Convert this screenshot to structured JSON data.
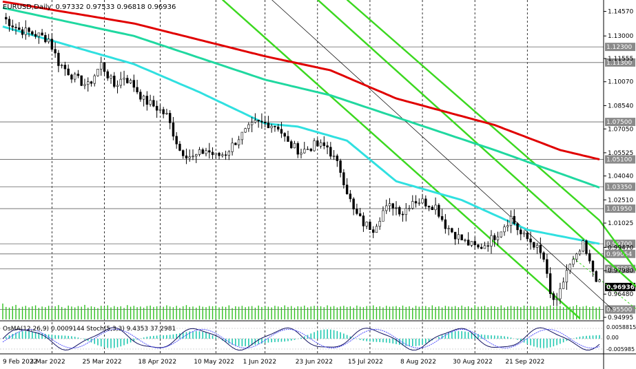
{
  "header": {
    "symbol": "EURUSD,Daily",
    "ohlc": "0.97332 0.97533 0.96818 0.96936"
  },
  "indicator_header": "OsMA(12,26,9) 0.0009144  Stoch(5,3,3) 9.4353 37.2981",
  "colors": {
    "background": "#ffffff",
    "candle": "#000000",
    "ema_red": "#e00000",
    "ema_teal": "#20d8a0",
    "ema_cyan": "#30e0e0",
    "channel": "#3cd820",
    "level_line": "#606060",
    "volume": "#30c020",
    "stoch_main": "#101060",
    "stoch_signal": "#5050ff"
  },
  "chart_data": {
    "type": "line",
    "price_axis": {
      "ticks": [
        "1.14570",
        "1.13000",
        "1.11555",
        "1.10070",
        "1.08540",
        "1.07050",
        "1.05525",
        "1.04040",
        "1.02510",
        "1.01025",
        "0.99470",
        "0.97980",
        "0.96480",
        "0.94995"
      ],
      "ylim": [
        0.9486,
        1.153
      ]
    },
    "levels": [
      "1.12300",
      "1.11300",
      "1.07500",
      "1.05100",
      "1.03350",
      "1.01950",
      "0.99700",
      "0.99054",
      "0.98093",
      "0.95500"
    ],
    "current_price": "0.96936",
    "dates": [
      "9 Feb 2022",
      "3 Mar 2022",
      "25 Mar 2022",
      "18 Apr 2022",
      "10 May 2022",
      "1 Jun 2022",
      "23 Jun 2022",
      "15 Jul 2022",
      "8 Aug 2022",
      "30 Aug 2022",
      "21 Sep 2022"
    ],
    "close_path": [
      [
        0,
        1.142
      ],
      [
        5,
        1.134
      ],
      [
        10,
        1.131
      ],
      [
        14,
        1.128
      ],
      [
        17,
        1.113
      ],
      [
        22,
        1.103
      ],
      [
        26,
        1.098
      ],
      [
        30,
        1.112
      ],
      [
        34,
        1.098
      ],
      [
        37,
        1.104
      ],
      [
        40,
        1.098
      ],
      [
        43,
        1.089
      ],
      [
        47,
        1.084
      ],
      [
        50,
        1.079
      ],
      [
        54,
        1.057
      ],
      [
        58,
        1.052
      ],
      [
        62,
        1.057
      ],
      [
        65,
        1.053
      ],
      [
        68,
        1.055
      ],
      [
        72,
        1.065
      ],
      [
        77,
        1.074
      ],
      [
        81,
        1.074
      ],
      [
        84,
        1.072
      ],
      [
        87,
        1.061
      ],
      [
        91,
        1.056
      ],
      [
        95,
        1.06
      ],
      [
        99,
        1.059
      ],
      [
        103,
        1.044
      ],
      [
        107,
        1.018
      ],
      [
        110,
        1.01
      ],
      [
        113,
        1.007
      ],
      [
        116,
        1.018
      ],
      [
        119,
        1.022
      ],
      [
        122,
        1.017
      ],
      [
        125,
        1.025
      ],
      [
        128,
        1.024
      ],
      [
        132,
        1.021
      ],
      [
        135,
        1.009
      ],
      [
        138,
        1.003
      ],
      [
        141,
        0.998
      ],
      [
        145,
        0.994
      ],
      [
        148,
        0.998
      ],
      [
        151,
        1.004
      ],
      [
        155,
        1.014
      ],
      [
        158,
        1.003
      ],
      [
        162,
        0.997
      ],
      [
        165,
        0.987
      ],
      [
        167,
        0.964
      ],
      [
        169,
        0.959
      ],
      [
        172,
        0.98
      ],
      [
        175,
        0.988
      ],
      [
        177,
        0.996
      ],
      [
        179,
        0.984
      ],
      [
        182,
        0.971
      ]
    ],
    "ma_red": [
      [
        0,
        1.152
      ],
      [
        40,
        1.138
      ],
      [
        80,
        1.117
      ],
      [
        100,
        1.108
      ],
      [
        120,
        1.09
      ],
      [
        150,
        1.073
      ],
      [
        170,
        1.057
      ],
      [
        182,
        1.051
      ]
    ],
    "ma_teal": [
      [
        0,
        1.148
      ],
      [
        40,
        1.13
      ],
      [
        80,
        1.102
      ],
      [
        100,
        1.092
      ],
      [
        120,
        1.078
      ],
      [
        150,
        1.057
      ],
      [
        170,
        1.042
      ],
      [
        182,
        1.033
      ]
    ],
    "ma_cyan": [
      [
        0,
        1.136
      ],
      [
        20,
        1.124
      ],
      [
        40,
        1.112
      ],
      [
        60,
        1.094
      ],
      [
        80,
        1.074
      ],
      [
        90,
        1.072
      ],
      [
        105,
        1.063
      ],
      [
        120,
        1.037
      ],
      [
        140,
        1.025
      ],
      [
        160,
        1.006
      ],
      [
        182,
        0.997
      ]
    ],
    "channels": [
      {
        "color": "green",
        "points": [
          [
            67,
            1.1532
          ],
          [
            176,
            0.9492
          ]
        ]
      },
      {
        "color": "green",
        "points": [
          [
            96,
            1.1532
          ],
          [
            204,
            0.9492
          ]
        ]
      },
      {
        "color": "green",
        "points": [
          [
            105,
            1.1532
          ],
          [
            182,
            1.012
          ],
          [
            204,
            0.9492
          ]
        ]
      },
      {
        "color": "black-thin",
        "points": [
          [
            82,
            1.1532
          ],
          [
            186,
            0.955
          ]
        ]
      }
    ],
    "volume": [
      70,
      55,
      52,
      58,
      64,
      50,
      56,
      60,
      53,
      58,
      62,
      51,
      57,
      54,
      60,
      52,
      58,
      63,
      55,
      50,
      61,
      57,
      53,
      59,
      56,
      64,
      52,
      58,
      55,
      50,
      60,
      57,
      62,
      53,
      59,
      55,
      58,
      51,
      63,
      56,
      60,
      54,
      57,
      52,
      59,
      61,
      55,
      58,
      53,
      56,
      62,
      57,
      54,
      60,
      51,
      58,
      63,
      55,
      57,
      52,
      60,
      56,
      54,
      59,
      58,
      61,
      53,
      57,
      55,
      62,
      50,
      58,
      56,
      60,
      54,
      57,
      59,
      52,
      61,
      55,
      58,
      56,
      53,
      60,
      57,
      54,
      62,
      55,
      59,
      52,
      58,
      56,
      61,
      53,
      57,
      60,
      55,
      58,
      54,
      62,
      56,
      59,
      53,
      57,
      60,
      55,
      58,
      52,
      61,
      56,
      54,
      59,
      57,
      62,
      55,
      58,
      53,
      60,
      56,
      57,
      59,
      54,
      61,
      55,
      58,
      52,
      60,
      56,
      57,
      59,
      54,
      62,
      55,
      58,
      53,
      60,
      57,
      56,
      59,
      54,
      61,
      55,
      58,
      52,
      63,
      56,
      57,
      60,
      54,
      59,
      58,
      55,
      62,
      53,
      57,
      60,
      56,
      58,
      54,
      61,
      55,
      59,
      57,
      53,
      60,
      56,
      58,
      62,
      55,
      57,
      59,
      54,
      61,
      56,
      58,
      63,
      55,
      57,
      60,
      54,
      58,
      52,
      56
    ]
  }
}
